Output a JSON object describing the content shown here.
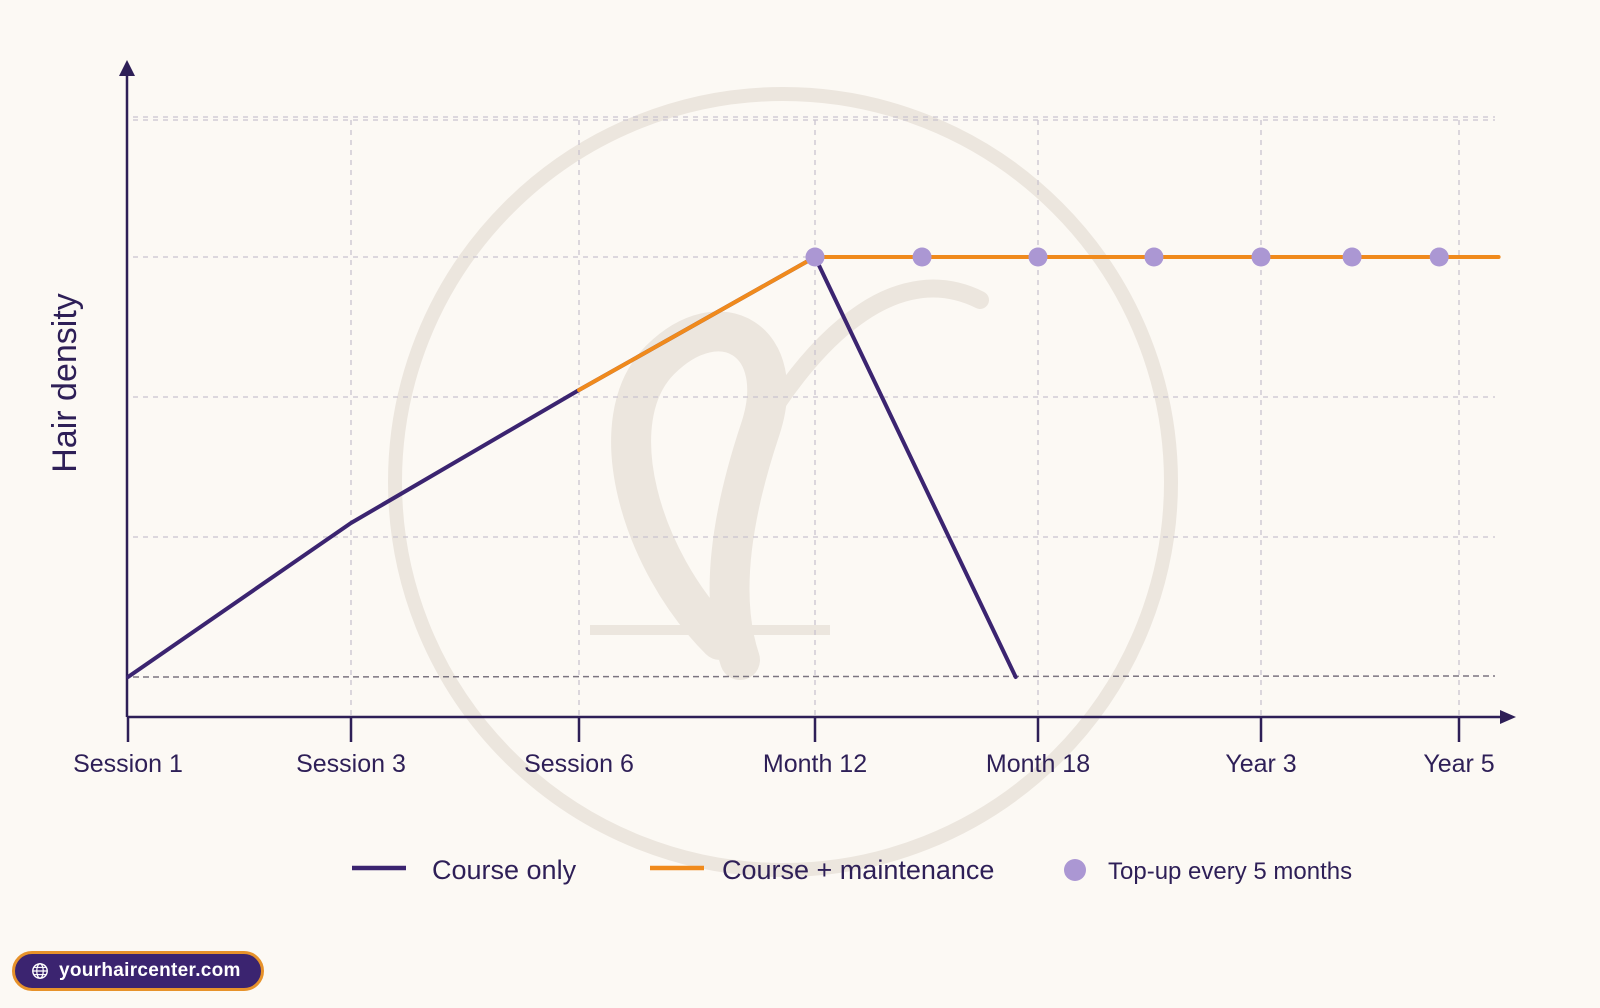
{
  "colors": {
    "course_only": "#3b2470",
    "course_maintenance": "#f08a1c",
    "top_up": "#ab97d3",
    "axis": "#2e1f57",
    "grid": "#c9c3cf",
    "baseline": "#7b7480",
    "background": "#fcf9f4",
    "watermark": "#ece6de"
  },
  "chart_data": {
    "type": "line",
    "title": "",
    "xlabel": "",
    "ylabel": "Hair density",
    "categories": [
      "Session 1",
      "Session 3",
      "Session 6",
      "Month 12",
      "Month 18",
      "Year 3",
      "Year 5"
    ],
    "y_scale": "relative (no numeric ticks)",
    "ylim": [
      0,
      4.3
    ],
    "grid": true,
    "baseline_level": 0,
    "legend_position": "bottom-center",
    "series": [
      {
        "name": "Course only",
        "color_key": "course_only",
        "points": [
          {
            "x": "Session 1",
            "y": 0
          },
          {
            "x": "Session 3",
            "y": 1.1
          },
          {
            "x": "Session 6",
            "y": 2.05
          },
          {
            "x": "Month 12",
            "y": 3.0
          },
          {
            "x": "Month 18 (approx. 0.9 of the way from Month 12)",
            "x_index": 3.9,
            "y": 0
          }
        ]
      },
      {
        "name": "Course + maintenance",
        "color_key": "course_maintenance",
        "points": [
          {
            "x": "Session 6",
            "x_index": 2,
            "y": 2.05
          },
          {
            "x": "Month 12",
            "x_index": 3,
            "y": 3.0
          },
          {
            "x": "Year 5+",
            "x_index": 6.2,
            "y": 3.0
          }
        ]
      },
      {
        "name": "Top-up every 5 months",
        "type": "markers",
        "color_key": "top_up",
        "x_index": [
          3.0,
          3.48,
          4.0,
          4.52,
          5.0,
          5.46,
          5.9
        ],
        "y": 3.0
      }
    ]
  },
  "legend": {
    "items": [
      {
        "label": "Course only",
        "symbol": "line",
        "color_key": "course_only"
      },
      {
        "label": "Course + maintenance",
        "symbol": "line",
        "color_key": "course_maintenance"
      },
      {
        "label": "Top-up every 5 months",
        "symbol": "dot",
        "color_key": "top_up"
      }
    ]
  },
  "footer": {
    "site_url": "yourhaircenter.com",
    "icon": "globe-icon"
  }
}
